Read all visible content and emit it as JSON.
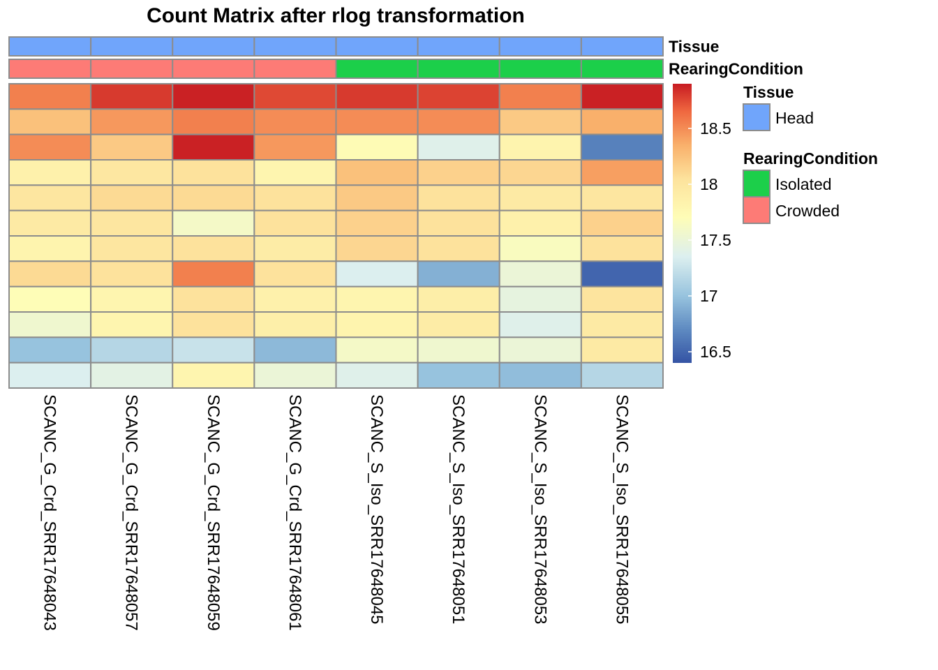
{
  "chart_data": {
    "type": "heatmap",
    "title": "Count Matrix after rlog transformation",
    "columns": [
      "SCANC_G_Crd_SRR17648043",
      "SCANC_G_Crd_SRR17648057",
      "SCANC_G_Crd_SRR17648059",
      "SCANC_G_Crd_SRR17648061",
      "SCANC_S_Iso_SRR17648045",
      "SCANC_S_Iso_SRR17648051",
      "SCANC_S_Iso_SRR17648053",
      "SCANC_S_Iso_SRR17648055"
    ],
    "values": [
      [
        18.55,
        18.8,
        18.88,
        18.75,
        18.8,
        18.77,
        18.55,
        18.88
      ],
      [
        18.25,
        18.45,
        18.55,
        18.5,
        18.5,
        18.5,
        18.2,
        18.35
      ],
      [
        18.5,
        18.2,
        18.88,
        18.45,
        17.72,
        17.38,
        17.82,
        16.65
      ],
      [
        17.85,
        17.98,
        18.05,
        17.8,
        18.25,
        18.15,
        18.12,
        18.42
      ],
      [
        18.0,
        18.1,
        18.1,
        18.05,
        18.2,
        18.05,
        17.95,
        18.0
      ],
      [
        17.95,
        18.0,
        17.6,
        18.05,
        18.15,
        18.05,
        17.85,
        18.15
      ],
      [
        17.82,
        18.0,
        18.05,
        17.92,
        18.12,
        18.05,
        17.65,
        18.05
      ],
      [
        18.1,
        18.05,
        18.55,
        18.05,
        17.35,
        16.9,
        17.5,
        16.5
      ],
      [
        17.7,
        17.8,
        18.05,
        17.85,
        17.8,
        17.9,
        17.45,
        18.02
      ],
      [
        17.55,
        17.8,
        18.05,
        17.88,
        17.82,
        17.92,
        17.38,
        17.95
      ],
      [
        17.0,
        17.15,
        17.25,
        16.95,
        17.6,
        17.55,
        17.5,
        17.95
      ],
      [
        17.35,
        17.42,
        17.8,
        17.5,
        17.38,
        17.0,
        16.97,
        17.15
      ]
    ],
    "color_scale": {
      "min": 16.4,
      "max": 18.9,
      "ticks": [
        16.5,
        17,
        17.5,
        18,
        18.5
      ],
      "tick_labels": [
        "16.5",
        "17",
        "17.5",
        "18",
        "18.5"
      ],
      "stops": [
        {
          "value": 16.4,
          "color": "#3453a4"
        },
        {
          "value": 16.7,
          "color": "#5e8ac1"
        },
        {
          "value": 17.0,
          "color": "#97c3de"
        },
        {
          "value": 17.35,
          "color": "#dcefef"
        },
        {
          "value": 17.7,
          "color": "#fefdb7"
        },
        {
          "value": 18.05,
          "color": "#fde29c"
        },
        {
          "value": 18.35,
          "color": "#f9b06b"
        },
        {
          "value": 18.65,
          "color": "#ef6840"
        },
        {
          "value": 18.9,
          "color": "#c71b22"
        }
      ]
    },
    "annotations": [
      {
        "name": "Tissue",
        "values": [
          "Head",
          "Head",
          "Head",
          "Head",
          "Head",
          "Head",
          "Head",
          "Head"
        ]
      },
      {
        "name": "RearingCondition",
        "values": [
          "Crowded",
          "Crowded",
          "Crowded",
          "Crowded",
          "Isolated",
          "Isolated",
          "Isolated",
          "Isolated"
        ]
      }
    ],
    "annotation_colors": {
      "Head": "#70a5fb",
      "Isolated": "#1ccf4a",
      "Crowded": "#fd7b76"
    },
    "legends": [
      {
        "title": "Tissue",
        "items": [
          "Head"
        ]
      },
      {
        "title": "RearingCondition",
        "items": [
          "Isolated",
          "Crowded"
        ]
      }
    ]
  }
}
